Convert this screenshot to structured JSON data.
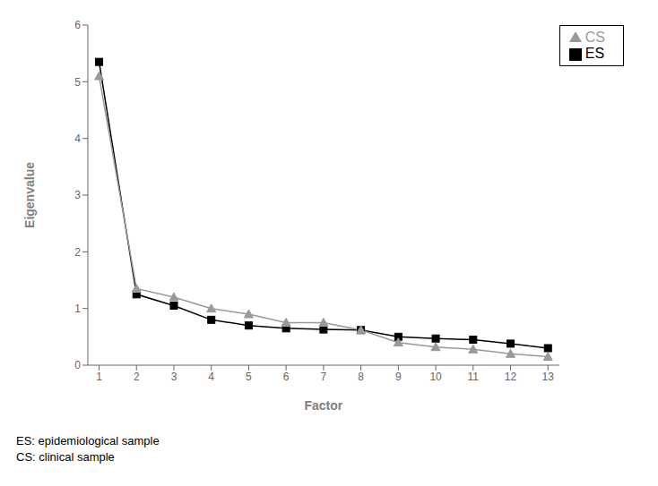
{
  "chart_data": {
    "type": "line",
    "x": [
      1,
      2,
      3,
      4,
      5,
      6,
      7,
      8,
      9,
      10,
      11,
      12,
      13
    ],
    "series": [
      {
        "name": "ES",
        "color": "#000000",
        "marker": "square",
        "values": [
          5.35,
          1.25,
          1.05,
          0.8,
          0.7,
          0.65,
          0.63,
          0.62,
          0.5,
          0.47,
          0.45,
          0.38,
          0.3
        ]
      },
      {
        "name": "CS",
        "color": "#999999",
        "marker": "triangle",
        "values": [
          5.1,
          1.35,
          1.2,
          1.0,
          0.9,
          0.75,
          0.75,
          0.62,
          0.4,
          0.32,
          0.28,
          0.2,
          0.15
        ]
      }
    ],
    "xlabel": "Factor",
    "ylabel": "Eigenvalue",
    "xlim": [
      0.7,
      13.3
    ],
    "xticks": [
      1,
      2,
      3,
      4,
      5,
      6,
      7,
      8,
      9,
      10,
      11,
      12,
      13
    ],
    "ylim": [
      0,
      6
    ],
    "yticks": [
      0,
      1,
      2,
      3,
      4,
      5,
      6
    ],
    "grid": false,
    "legend": "upper right",
    "annotations": [
      "ES: epidemiological sample",
      "CS: clinical sample"
    ]
  }
}
